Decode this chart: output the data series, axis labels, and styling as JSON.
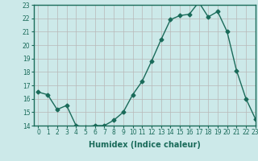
{
  "x": [
    0,
    1,
    2,
    3,
    4,
    5,
    6,
    7,
    8,
    9,
    10,
    11,
    12,
    13,
    14,
    15,
    16,
    17,
    18,
    19,
    20,
    21,
    22,
    23
  ],
  "y": [
    16.5,
    16.3,
    15.2,
    15.5,
    14.0,
    13.9,
    14.0,
    14.0,
    14.4,
    15.0,
    16.3,
    17.3,
    18.8,
    20.4,
    21.9,
    22.2,
    22.3,
    23.2,
    22.1,
    22.5,
    21.0,
    18.1,
    16.0,
    14.5
  ],
  "line_color": "#1a6b5a",
  "marker": "D",
  "marker_size": 2.5,
  "bg_color": "#cce9e9",
  "grid_color": "#b8b8b8",
  "xlabel": "Humidex (Indice chaleur)",
  "ylim": [
    14,
    23
  ],
  "xlim": [
    -0.5,
    23
  ],
  "yticks": [
    14,
    15,
    16,
    17,
    18,
    19,
    20,
    21,
    22,
    23
  ],
  "xticks": [
    0,
    1,
    2,
    3,
    4,
    5,
    6,
    7,
    8,
    9,
    10,
    11,
    12,
    13,
    14,
    15,
    16,
    17,
    18,
    19,
    20,
    21,
    22,
    23
  ],
  "tick_label_fontsize": 5.5,
  "xlabel_fontsize": 7,
  "spine_color": "#1a6b5a"
}
